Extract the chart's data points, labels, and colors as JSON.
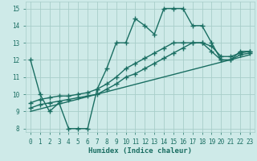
{
  "xlabel": "Humidex (Indice chaleur)",
  "ylabel": "",
  "xlim": [
    -0.5,
    23.5
  ],
  "ylim": [
    7.8,
    15.4
  ],
  "xticks": [
    0,
    1,
    2,
    3,
    4,
    5,
    6,
    7,
    8,
    9,
    10,
    11,
    12,
    13,
    14,
    15,
    16,
    17,
    18,
    19,
    20,
    21,
    22,
    23
  ],
  "yticks": [
    8,
    9,
    10,
    11,
    12,
    13,
    14,
    15
  ],
  "bg_color": "#ceeae8",
  "grid_color": "#a8ceca",
  "line_color": "#1a6e62",
  "line_width": 1.0,
  "markersize": 4,
  "curves": [
    {
      "x": [
        0,
        1,
        2,
        3,
        4,
        5,
        6,
        7,
        8,
        9,
        10,
        11,
        12,
        13,
        14,
        15,
        16,
        17,
        18,
        19,
        20,
        21,
        22,
        23
      ],
      "y": [
        12,
        10,
        9,
        9.5,
        8,
        8,
        8,
        10.3,
        11.5,
        13,
        13,
        14.4,
        14,
        13.5,
        15,
        15,
        15,
        14,
        14,
        13,
        12,
        12,
        12.5,
        12.5
      ]
    },
    {
      "x": [
        0,
        1,
        2,
        3,
        4,
        5,
        6,
        7,
        8,
        9,
        10,
        11,
        12,
        13,
        14,
        15,
        16,
        17,
        18,
        19,
        20,
        21,
        22,
        23
      ],
      "y": [
        9.5,
        9.7,
        9.8,
        9.9,
        9.9,
        10.0,
        10.1,
        10.3,
        10.6,
        11.0,
        11.5,
        11.8,
        12.1,
        12.4,
        12.7,
        13.0,
        13.0,
        13.0,
        13.0,
        12.8,
        12.2,
        12.2,
        12.4,
        12.5
      ]
    },
    {
      "x": [
        0,
        1,
        2,
        3,
        4,
        5,
        6,
        7,
        8,
        9,
        10,
        11,
        12,
        13,
        14,
        15,
        16,
        17,
        18,
        19,
        20,
        21,
        22,
        23
      ],
      "y": [
        9.2,
        9.4,
        9.5,
        9.6,
        9.7,
        9.8,
        9.9,
        10.0,
        10.3,
        10.6,
        11.0,
        11.2,
        11.5,
        11.8,
        12.1,
        12.4,
        12.7,
        13.0,
        13.0,
        12.5,
        12.0,
        12.0,
        12.3,
        12.4
      ]
    },
    {
      "x": [
        0,
        23
      ],
      "y": [
        9.0,
        12.3
      ]
    }
  ],
  "has_marker": [
    true,
    true,
    true,
    false
  ]
}
